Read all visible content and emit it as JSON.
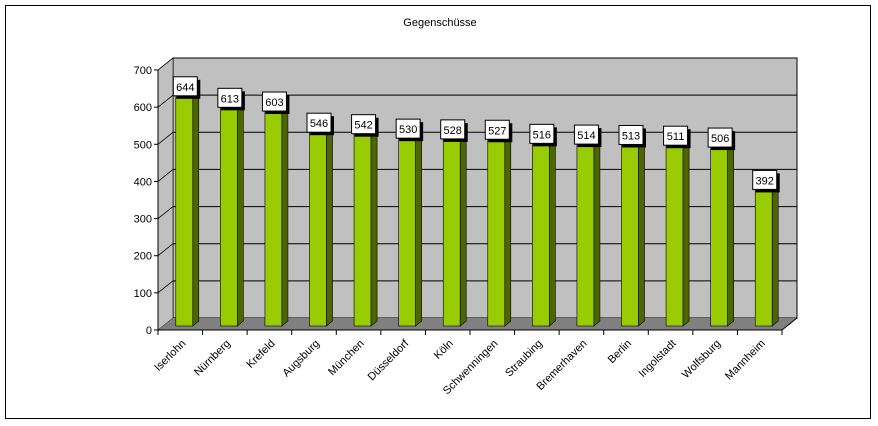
{
  "chart_data": {
    "type": "bar",
    "title": "Gegenschüsse",
    "xlabel": "",
    "ylabel": "",
    "ylim": [
      0,
      700
    ],
    "yticks": [
      0,
      100,
      200,
      300,
      400,
      500,
      600,
      700
    ],
    "grid": true,
    "legend": "none",
    "categories": [
      "Iserlohn",
      "Nürnberg",
      "Krefeld",
      "Augsburg",
      "München",
      "Düsseldorf",
      "Köln",
      "Schwenningen",
      "Straubing",
      "Bremerhaven",
      "Berlin",
      "Ingolstadt",
      "Wolfsburg",
      "Mannheim"
    ],
    "values": [
      644,
      613,
      603,
      546,
      542,
      530,
      528,
      527,
      516,
      514,
      513,
      511,
      506,
      392
    ],
    "colors": {
      "bar_front": "#99cc00",
      "bar_side": "#4d6600",
      "bar_top": "#99cc00",
      "wall": "#c0c0c0",
      "floor": "#808080"
    }
  }
}
